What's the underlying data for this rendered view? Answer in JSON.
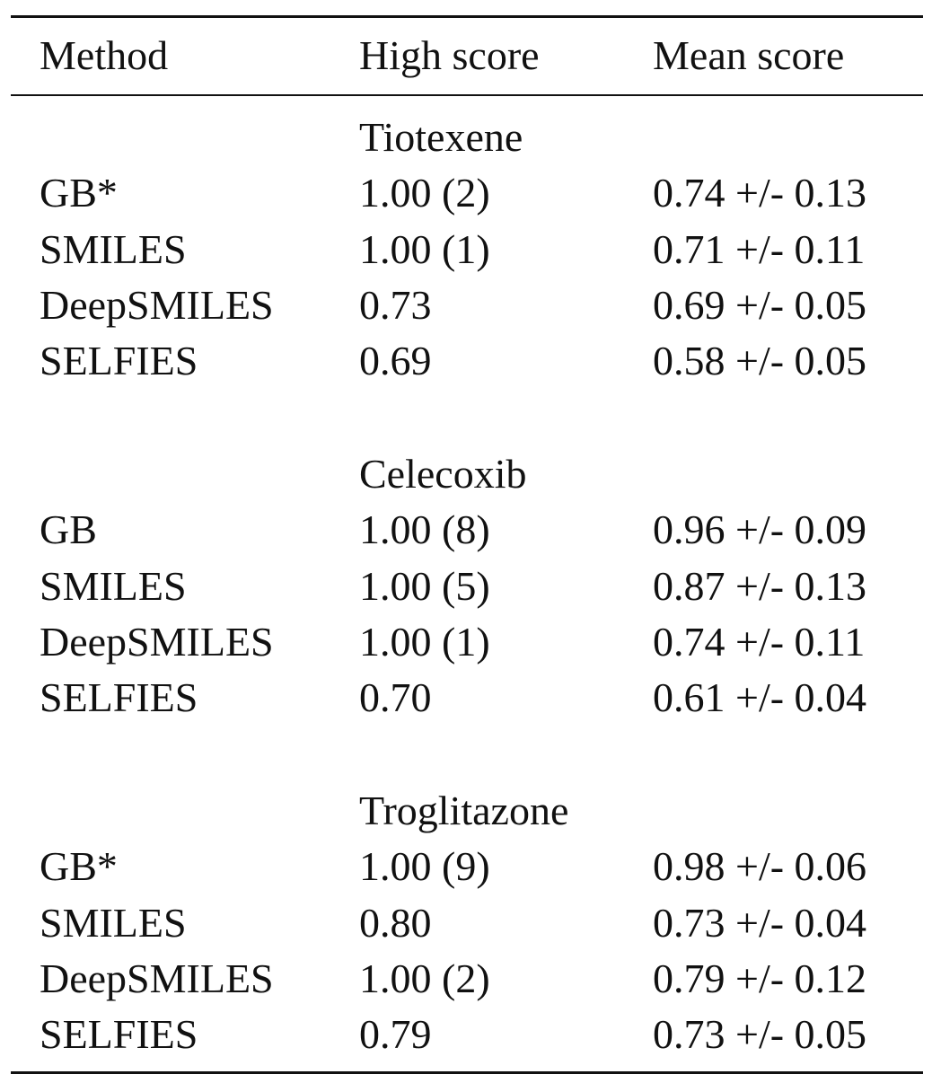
{
  "table": {
    "header": [
      "Method",
      "High score",
      "Mean score"
    ],
    "groups": [
      {
        "name": "Tiotexene",
        "rows": [
          [
            "GB*",
            "1.00 (2)",
            "0.74 +/- 0.13"
          ],
          [
            "SMILES",
            "1.00 (1)",
            "0.71 +/- 0.11"
          ],
          [
            "DeepSMILES",
            "0.73",
            "0.69 +/- 0.05"
          ],
          [
            "SELFIES",
            "0.69",
            "0.58 +/- 0.05"
          ]
        ]
      },
      {
        "name": "Celecoxib",
        "rows": [
          [
            "GB",
            "1.00 (8)",
            "0.96 +/- 0.09"
          ],
          [
            "SMILES",
            "1.00 (5)",
            "0.87 +/- 0.13"
          ],
          [
            "DeepSMILES",
            "1.00 (1)",
            "0.74 +/- 0.11"
          ],
          [
            "SELFIES",
            "0.70",
            "0.61 +/- 0.04"
          ]
        ]
      },
      {
        "name": "Troglitazone",
        "rows": [
          [
            "GB*",
            "1.00 (9)",
            "0.98 +/- 0.06"
          ],
          [
            "SMILES",
            "0.80",
            "0.73 +/- 0.04"
          ],
          [
            "DeepSMILES",
            "1.00 (2)",
            "0.79 +/- 0.12"
          ],
          [
            "SELFIES",
            "0.79",
            "0.73 +/- 0.05"
          ]
        ]
      }
    ]
  }
}
